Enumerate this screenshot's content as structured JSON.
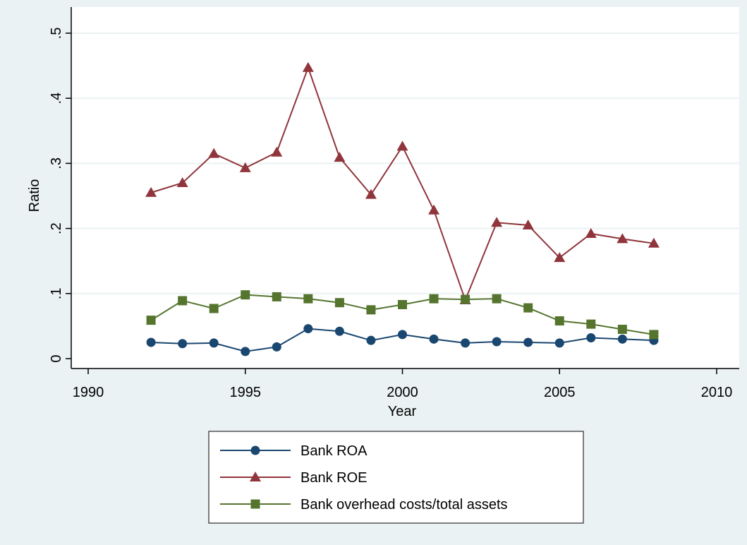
{
  "chart_data": {
    "type": "line",
    "xlabel": "Year",
    "ylabel": "Ratio",
    "xlim": [
      1990,
      2010
    ],
    "ylim": [
      0,
      0.5
    ],
    "x_ticks": [
      1990,
      1995,
      2000,
      2005,
      2010
    ],
    "x_tick_labels": [
      "1990",
      "1995",
      "2000",
      "2005",
      "2010"
    ],
    "y_ticks": [
      0,
      0.1,
      0.2,
      0.3,
      0.4,
      0.5
    ],
    "y_tick_labels": [
      "0",
      ".1",
      ".2",
      ".3",
      ".4",
      ".5"
    ],
    "grid": "horizontal",
    "legend_position": "bottom",
    "x": [
      1992,
      1993,
      1994,
      1995,
      1996,
      1997,
      1998,
      1999,
      2000,
      2001,
      2002,
      2003,
      2004,
      2005,
      2006,
      2007,
      2008
    ],
    "series": [
      {
        "name": "Bank ROA",
        "color": "#1a476f",
        "marker": "circle",
        "values": [
          0.025,
          0.023,
          0.024,
          0.011,
          0.018,
          0.046,
          0.042,
          0.028,
          0.037,
          0.03,
          0.024,
          0.026,
          0.025,
          0.024,
          0.032,
          0.03,
          0.028
        ]
      },
      {
        "name": "Bank ROE",
        "color": "#90353b",
        "marker": "triangle",
        "values": [
          0.255,
          0.27,
          0.315,
          0.293,
          0.317,
          0.447,
          0.309,
          0.252,
          0.326,
          0.228,
          0.09,
          0.209,
          0.205,
          0.155,
          0.192,
          0.184,
          0.177
        ]
      },
      {
        "name": "Bank overhead costs/total assets",
        "color": "#55752f",
        "marker": "square",
        "values": [
          0.059,
          0.089,
          0.077,
          0.098,
          0.095,
          0.092,
          0.086,
          0.075,
          0.083,
          0.092,
          0.091,
          0.092,
          0.078,
          0.058,
          0.053,
          0.045,
          0.037
        ]
      }
    ]
  }
}
